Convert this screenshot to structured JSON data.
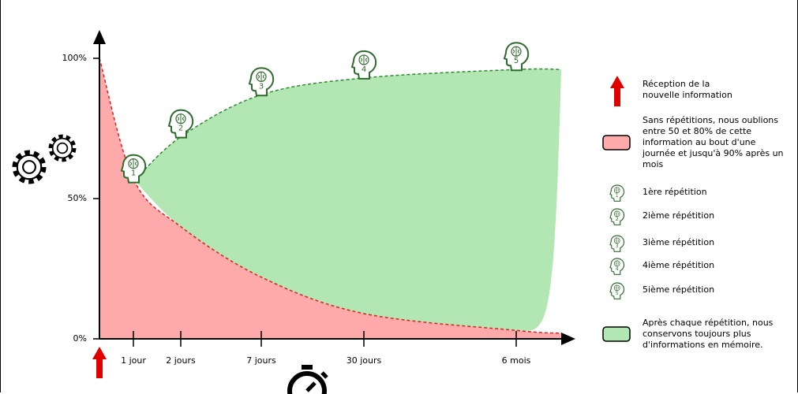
{
  "chart_data": {
    "type": "area",
    "categories": [
      null,
      "1 jour",
      "2 jours",
      "7 jours",
      "30 jours",
      "6 mois",
      null
    ],
    "series": [
      {
        "name": "Sans répétitions, nous oublions entre 50 et 80% de cette information au bout d'une journée et jusqu'à 90% après un mois",
        "color": "#ffaaaa",
        "line_color": "#e02020",
        "values": [
          100,
          57,
          40,
          22,
          9,
          3,
          2
        ]
      },
      {
        "name": "Après chaque répétition, nous conservons toujours plus d'informations en mémoire.",
        "color": "#b2e6b2",
        "line_color": "#2e8b2e",
        "values": [
          null,
          56,
          72,
          87,
          93,
          96,
          96
        ]
      }
    ],
    "repetition_labels": [
      1,
      2,
      3,
      4,
      5
    ],
    "repetition_legend": [
      "1ère répétition",
      "2ième répétition",
      "3ième répétition",
      "4ième répétition",
      "5ième répétition"
    ],
    "arrow_label": "Réception de la nouvelle information",
    "ylim": [
      0,
      100
    ],
    "yticks": [
      {
        "value": 0,
        "label": "0%"
      },
      {
        "value": 50,
        "label": "50%"
      },
      {
        "value": 100,
        "label": "100%"
      }
    ]
  }
}
